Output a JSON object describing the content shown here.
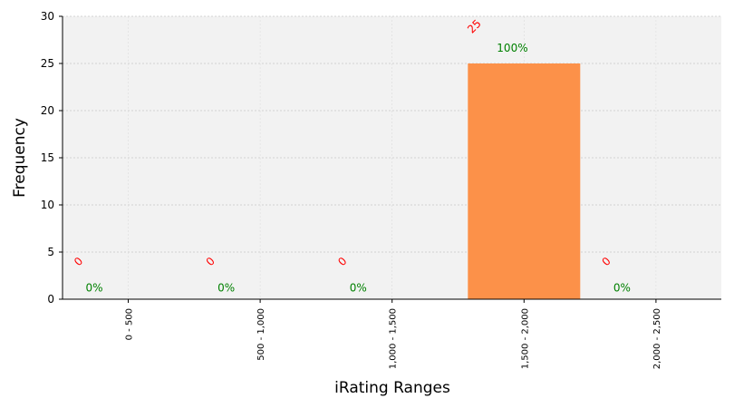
{
  "chart_data": {
    "type": "bar",
    "title": "",
    "xlabel": "iRating Ranges",
    "ylabel": "Frequency",
    "categories": [
      "0 - 500",
      "500 - 1,000",
      "1,000 - 1,500",
      "1,500 - 2,000",
      "2,000 - 2,500"
    ],
    "values": [
      0,
      0,
      0,
      25,
      0
    ],
    "count_labels": [
      "0",
      "0",
      "0",
      "25",
      "0"
    ],
    "percent_labels": [
      "0%",
      "0%",
      "0%",
      "100%",
      "0%"
    ],
    "ylim": [
      0,
      30
    ],
    "yticks": [
      0,
      5,
      10,
      15,
      20,
      25,
      30
    ],
    "grid": true,
    "colors": {
      "bar": "#fc9149",
      "plot_background": "#f2f2f2",
      "count_label": "#ff0000",
      "percent_label": "#008000",
      "grid": "#c8c8c8"
    }
  }
}
